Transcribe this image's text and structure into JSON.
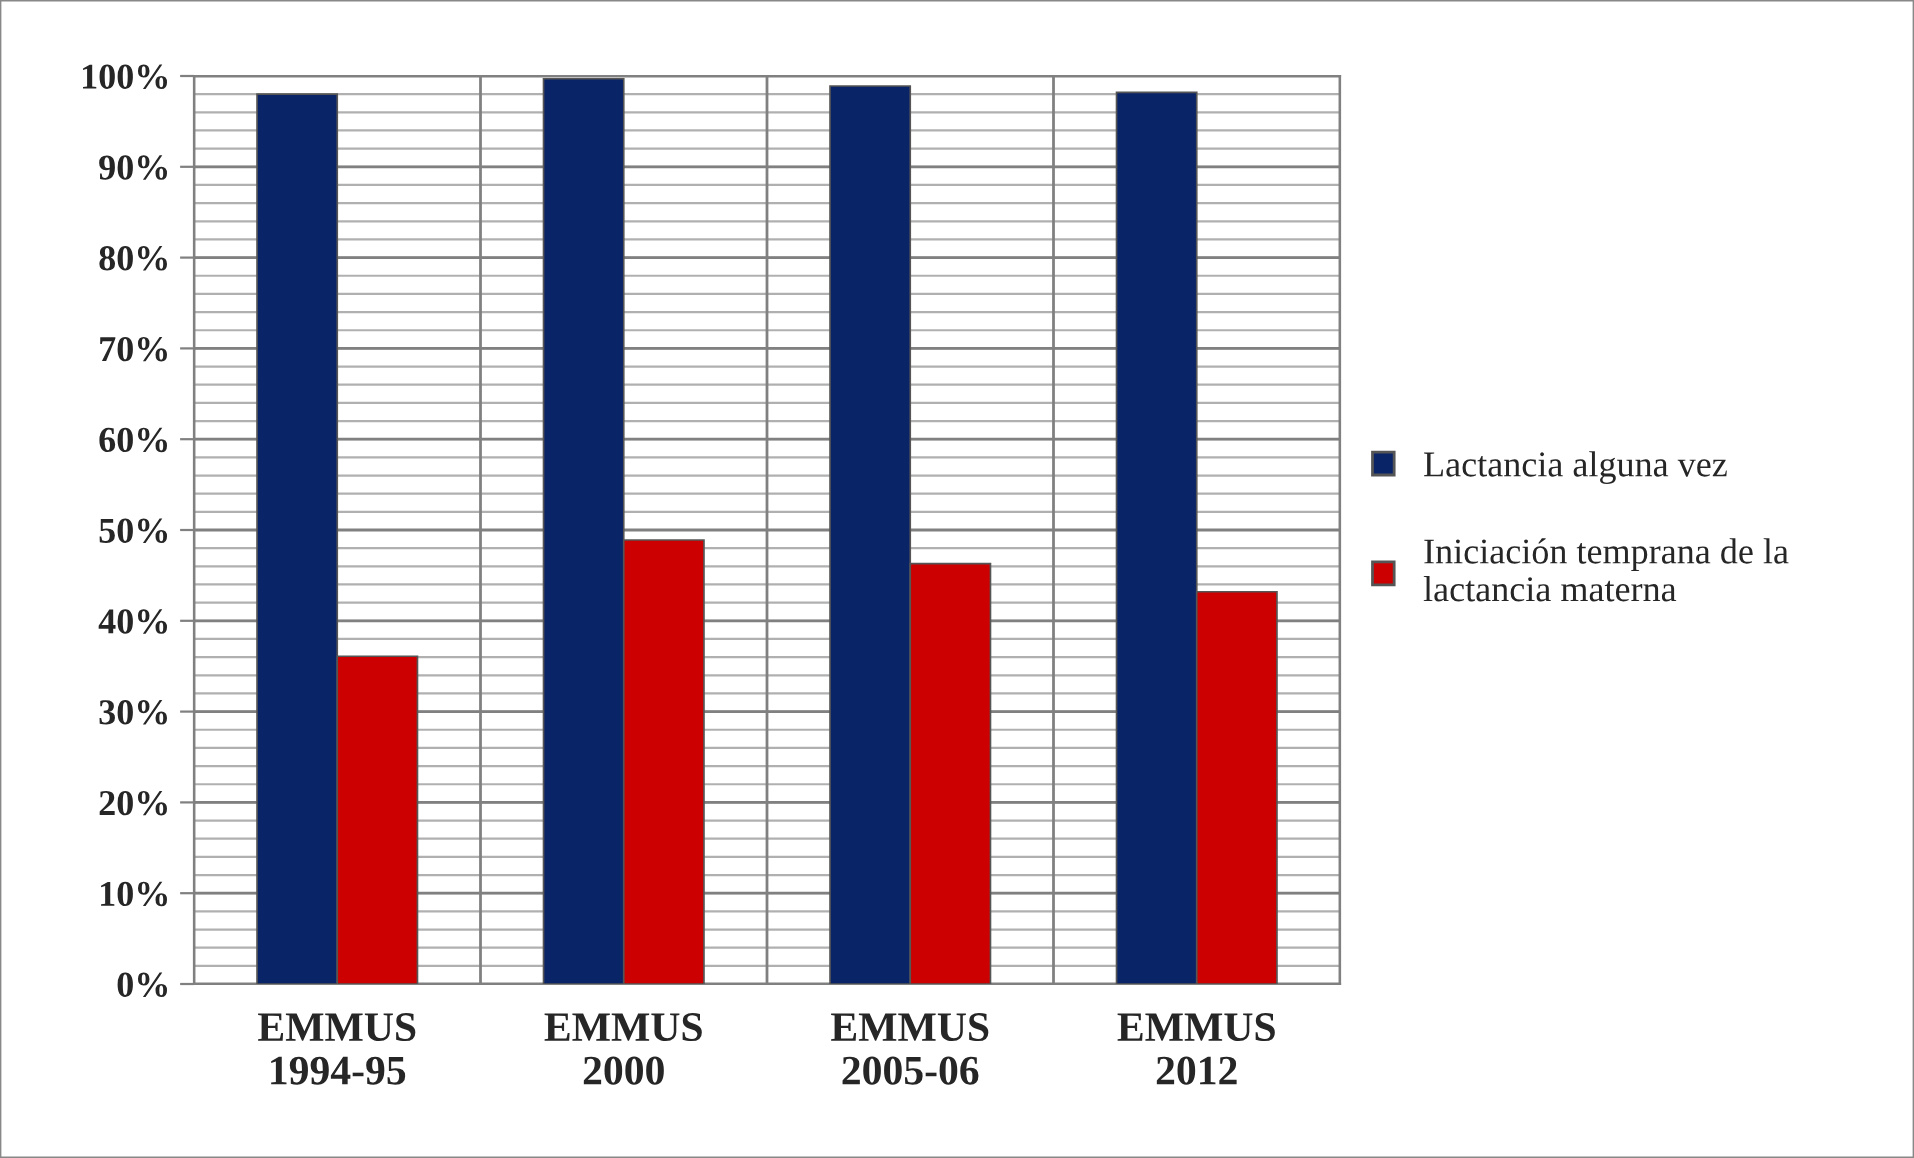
{
  "chart_data": {
    "type": "bar",
    "categories": [
      "EMMUS\n1994-95",
      "EMMUS\n2000",
      "EMMUS\n2005-06",
      "EMMUS\n2012"
    ],
    "series": [
      {
        "name": "Lactancia alguna vez",
        "color": "#0a2468",
        "values": [
          98.0,
          99.7,
          98.9,
          98.2
        ]
      },
      {
        "name": "Iniciación temprana de la\nlactancia materna",
        "color": "#cc0000",
        "values": [
          36.1,
          48.9,
          46.3,
          43.2
        ]
      }
    ],
    "ylim": [
      0,
      100
    ],
    "yticks": [
      {
        "value": 0,
        "label": "0%"
      },
      {
        "value": 10,
        "label": "10%"
      },
      {
        "value": 20,
        "label": "20%"
      },
      {
        "value": 30,
        "label": "30%"
      },
      {
        "value": 40,
        "label": "40%"
      },
      {
        "value": 50,
        "label": "50%"
      },
      {
        "value": 60,
        "label": "60%"
      },
      {
        "value": 70,
        "label": "70%"
      },
      {
        "value": 80,
        "label": "80%"
      },
      {
        "value": 90,
        "label": "90%"
      },
      {
        "value": 100,
        "label": "100%"
      }
    ],
    "grid": true,
    "legend": "right"
  }
}
